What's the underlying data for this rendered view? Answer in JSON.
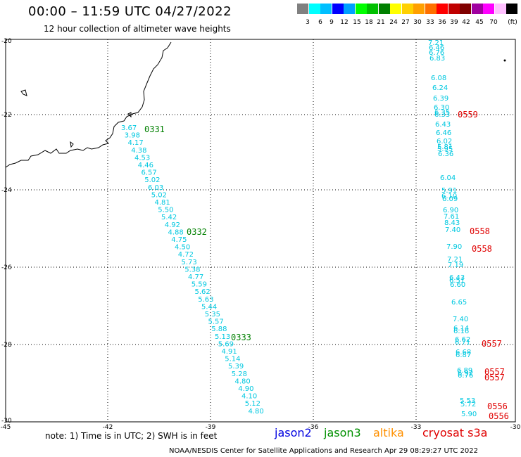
{
  "header": {
    "title": "00:00 – 11:59 UTC 04/27/2022",
    "subtitle": "12 hour collection of altimeter wave heights"
  },
  "legend": {
    "colors": [
      "#808080",
      "#00ffff",
      "#00bfff",
      "#0000ff",
      "#00a0ff",
      "#00ff00",
      "#00c000",
      "#008000",
      "#ffff00",
      "#ffd000",
      "#ffa000",
      "#ff7000",
      "#ff0000",
      "#c00000",
      "#800000",
      "#a000a0",
      "#ff00ff",
      "#ffc0ff",
      "#000000"
    ],
    "labels": [
      "3",
      "6",
      "9",
      "12",
      "15",
      "18",
      "21",
      "24",
      "27",
      "30",
      "33",
      "36",
      "39",
      "42",
      "45",
      "70"
    ],
    "unit": "(ft)"
  },
  "axes": {
    "y_labels": [
      "-20",
      "-22",
      "-24",
      "-26",
      "-28",
      "-30"
    ],
    "x_labels": [
      "-45",
      "-42",
      "-39",
      "-36",
      "-33",
      "-30"
    ]
  },
  "tracks": [
    {
      "id": "0331",
      "color": "#008000"
    },
    {
      "id": "0332",
      "color": "#008000"
    },
    {
      "id": "0333",
      "color": "#008000"
    },
    {
      "id": "0559",
      "color": "#e00000"
    },
    {
      "id": "0558",
      "color": "#e00000"
    },
    {
      "id": "0558",
      "color": "#e00000"
    },
    {
      "id": "0557",
      "color": "#e00000"
    },
    {
      "id": "0557",
      "color": "#e00000"
    },
    {
      "id": "0557",
      "color": "#e00000"
    },
    {
      "id": "0556",
      "color": "#e00000"
    },
    {
      "id": "0556",
      "color": "#e00000"
    }
  ],
  "west_track_values": [
    "3.67",
    "3.98",
    "4.17",
    "4.38",
    "4.53",
    "4.46",
    "6.57",
    "5.02",
    "6.03",
    "5.02",
    "4.81",
    "5.50",
    "5.42",
    "4.92",
    "4.88",
    "4.75",
    "4.50",
    "4.72",
    "5.73",
    "5.38",
    "4.77",
    "5.59",
    "5.62",
    "5.63",
    "5.44",
    "5.35",
    "5.57",
    "5.88",
    "5.13",
    "5.69",
    "4.91",
    "5.14",
    "5.39",
    "5.28",
    "4.80",
    "4.90",
    "4.10",
    "5.12",
    "4.80"
  ],
  "east_track_values": [
    "7.21",
    "6.46",
    "6.76",
    "6.83",
    "6.08",
    "6.24",
    "6.39",
    "6.30",
    "6.35",
    "6.33",
    "6.43",
    "6.46",
    "6.02",
    "5.81",
    "5.95",
    "6.36",
    "6.04",
    "5.91",
    "6.10",
    "6.09",
    "6.90",
    "7.61",
    "8.43",
    "7.40",
    "7.90",
    "7.21",
    "7.19",
    "6.43",
    "6.51",
    "6.60",
    "6.65",
    "7.40",
    "6.14",
    "6.16",
    "6.62",
    "6.71",
    "6.68",
    "6.87",
    "6.89",
    "6.92",
    "6.76",
    "5.53",
    "5.72",
    "5.90"
  ],
  "note": "note:  1) Time is in UTC;  2) SWH is in feet",
  "satellites": [
    {
      "name": "jason2",
      "color": "#0000e0"
    },
    {
      "name": "jason3",
      "color": "#009000"
    },
    {
      "name": "altika",
      "color": "#ff9000"
    },
    {
      "name": "cryosat s3a",
      "color": "#e00000"
    }
  ],
  "footer": "NOAA/NESDIS Center for Satellite Applications and Research    Apr 29 08:29:27 UTC 2022"
}
